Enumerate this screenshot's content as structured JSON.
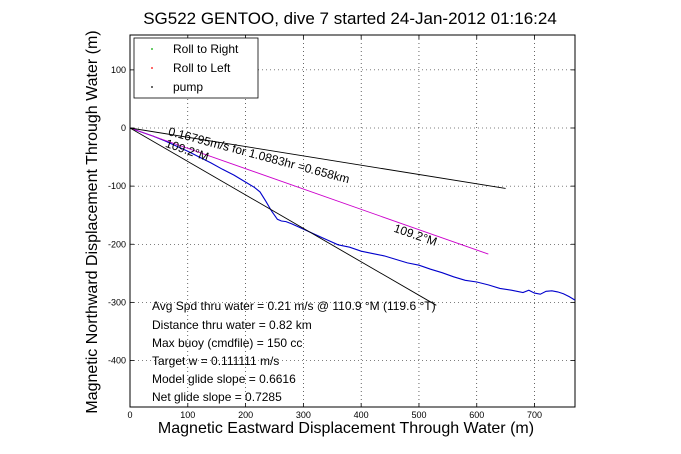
{
  "chart_data": {
    "type": "line",
    "title": "SG522 GENTOO, dive 7 started 24-Jan-2012 01:16:24",
    "xlabel": "Magnetic Eastward Displacement Through Water (m)",
    "ylabel": "Magnetic Northward Displacement Through Water (m)",
    "xlim": [
      0,
      770
    ],
    "ylim": [
      -480,
      160
    ],
    "x_ticks": [
      0,
      100,
      200,
      300,
      400,
      500,
      600,
      700
    ],
    "y_ticks": [
      100,
      0,
      -100,
      -200,
      -300,
      -400
    ],
    "grid": true,
    "legend": {
      "placement": "top-left",
      "entries": [
        {
          "label": "Roll to Right",
          "color": "#00aa00",
          "marker": "."
        },
        {
          "label": "Roll to Left",
          "color": "#ff0000",
          "marker": "."
        },
        {
          "label": "pump",
          "color": "#000000",
          "marker": "."
        }
      ]
    },
    "series": [
      {
        "color": "#0000cc",
        "style": "track",
        "x": [
          0,
          20,
          40,
          60,
          80,
          100,
          120,
          140,
          160,
          180,
          200,
          215,
          225,
          235,
          245,
          255,
          262,
          270,
          280,
          300,
          320,
          340,
          360,
          380,
          400,
          420,
          440,
          460,
          480,
          500,
          520,
          540,
          560,
          580,
          600,
          620,
          640,
          660,
          680,
          690,
          700,
          710,
          720,
          730,
          740,
          750,
          760,
          770
        ],
        "y": [
          0,
          -7,
          -14,
          -22,
          -31,
          -40,
          -50,
          -60,
          -71,
          -81,
          -93,
          -102,
          -110,
          -126,
          -143,
          -157,
          -160,
          -161,
          -165,
          -174,
          -183,
          -192,
          -201,
          -205,
          -212,
          -216,
          -220,
          -226,
          -232,
          -236,
          -243,
          -249,
          -256,
          -262,
          -265,
          -270,
          -276,
          -279,
          -283,
          -279,
          -284,
          -286,
          -281,
          -280,
          -282,
          -285,
          -290,
          -296
        ]
      },
      {
        "color": "#cc00cc",
        "style": "line",
        "x": [
          0,
          620
        ],
        "y": [
          0,
          -217
        ]
      },
      {
        "color": "#000000",
        "style": "line",
        "x": [
          0,
          650
        ],
        "y": [
          0,
          -104
        ]
      },
      {
        "color": "#000000",
        "style": "line",
        "x": [
          0,
          530
        ],
        "y": [
          0,
          -305
        ]
      }
    ],
    "annotations": [
      {
        "text": "0.16795m/s for 1.0883hr =0.658km",
        "x": 65,
        "y": -12,
        "angle": 15
      },
      {
        "text": "109.2°M",
        "x": 60,
        "y": -32,
        "angle": 19
      },
      {
        "text": "109.2°M",
        "x": 455,
        "y": -178,
        "angle": 19
      }
    ],
    "stats": [
      "Avg Spd thru water =  0.21 m/s @ 110.9    °M (119.6 °T)",
      "Distance thru water =  0.82 km",
      "Max buoy (cmdfile) = 150 cc",
      "Target w = 0.111111 m/s",
      "Model glide slope = 0.6616",
      "Net glide slope = 0.7285"
    ]
  }
}
